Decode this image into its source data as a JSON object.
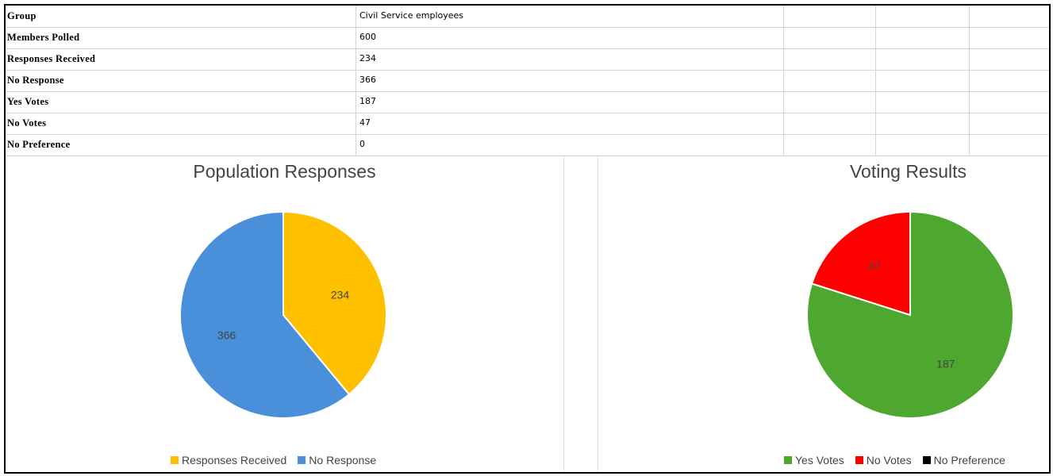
{
  "table": {
    "rows": [
      {
        "label": "Group",
        "value": "Civil Service employees"
      },
      {
        "label": "Members Polled",
        "value": "600"
      },
      {
        "label": "Responses Received",
        "value": "234"
      },
      {
        "label": "No Response",
        "value": "366"
      },
      {
        "label": "Yes Votes",
        "value": "187"
      },
      {
        "label": "No Votes",
        "value": "47"
      },
      {
        "label": "No Preference",
        "value": "0"
      }
    ]
  },
  "chart_data": [
    {
      "type": "pie",
      "title": "Population Responses",
      "categories": [
        "Responses Received",
        "No Response"
      ],
      "values": [
        234,
        366
      ],
      "colors": [
        "#FFC000",
        "#4A8FD9"
      ],
      "legend": "bottom"
    },
    {
      "type": "pie",
      "title": "Voting Results",
      "categories": [
        "Yes Votes",
        "No Votes",
        "No Preference"
      ],
      "values": [
        187,
        47,
        0
      ],
      "colors": [
        "#4EA72E",
        "#FF0000",
        "#000000"
      ],
      "legend": "bottom"
    }
  ]
}
